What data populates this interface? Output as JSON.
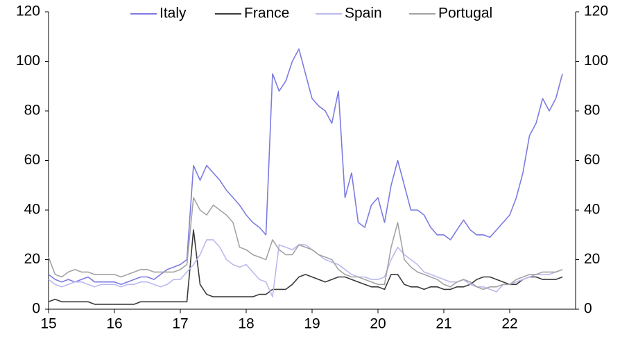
{
  "chart_data": {
    "type": "line",
    "x": [
      15,
      15.1,
      15.2,
      15.3,
      15.4,
      15.5,
      15.6,
      15.7,
      15.8,
      15.9,
      16,
      16.1,
      16.2,
      16.3,
      16.4,
      16.5,
      16.6,
      16.7,
      16.8,
      16.9,
      17,
      17.1,
      17.2,
      17.3,
      17.4,
      17.5,
      17.6,
      17.7,
      17.8,
      17.9,
      18,
      18.1,
      18.2,
      18.3,
      18.4,
      18.5,
      18.6,
      18.7,
      18.8,
      18.9,
      19,
      19.1,
      19.2,
      19.3,
      19.4,
      19.5,
      19.6,
      19.7,
      19.8,
      19.9,
      20,
      20.1,
      20.2,
      20.3,
      20.4,
      20.5,
      20.6,
      20.7,
      20.8,
      20.9,
      21,
      21.1,
      21.2,
      21.3,
      21.4,
      21.5,
      21.6,
      21.7,
      21.8,
      21.9,
      22,
      22.1,
      22.2,
      22.3,
      22.4,
      22.5,
      22.6,
      22.7,
      22.8
    ],
    "series": [
      {
        "name": "Italy",
        "color": "#7b7be3",
        "values": [
          14,
          12,
          11,
          12,
          11,
          12,
          13,
          11,
          11,
          11,
          11,
          10,
          11,
          12,
          13,
          13,
          12,
          14,
          16,
          17,
          18,
          20,
          58,
          52,
          58,
          55,
          52,
          48,
          45,
          42,
          38,
          35,
          33,
          30,
          95,
          88,
          92,
          100,
          105,
          95,
          85,
          82,
          80,
          75,
          88,
          45,
          55,
          35,
          33,
          42,
          45,
          35,
          50,
          60,
          50,
          40,
          40,
          38,
          33,
          30,
          30,
          28,
          32,
          36,
          32,
          30,
          30,
          29,
          32,
          35,
          38,
          45,
          55,
          70,
          75,
          85,
          80,
          85,
          95
        ]
      },
      {
        "name": "France",
        "color": "#3a3a3a",
        "values": [
          3,
          4,
          3,
          3,
          3,
          3,
          3,
          2,
          2,
          2,
          2,
          2,
          2,
          2,
          3,
          3,
          3,
          3,
          3,
          3,
          3,
          3,
          32,
          10,
          6,
          5,
          5,
          5,
          5,
          5,
          5,
          5,
          6,
          6,
          8,
          8,
          8,
          10,
          13,
          14,
          13,
          12,
          11,
          12,
          13,
          13,
          12,
          11,
          10,
          9,
          9,
          8,
          14,
          14,
          10,
          9,
          9,
          8,
          9,
          9,
          8,
          8,
          9,
          9,
          10,
          12,
          13,
          13,
          12,
          11,
          10,
          10,
          12,
          13,
          13,
          12,
          12,
          12,
          13
        ]
      },
      {
        "name": "Spain",
        "color": "#b9b9f0",
        "values": [
          12,
          10,
          9,
          10,
          11,
          11,
          10,
          9,
          10,
          10,
          10,
          9,
          10,
          10,
          11,
          11,
          10,
          9,
          10,
          12,
          12,
          15,
          18,
          22,
          28,
          28,
          25,
          20,
          18,
          17,
          18,
          15,
          12,
          11,
          5,
          26,
          25,
          24,
          26,
          26,
          24,
          22,
          20,
          19,
          18,
          16,
          14,
          13,
          13,
          12,
          12,
          13,
          20,
          25,
          22,
          20,
          18,
          15,
          14,
          13,
          12,
          11,
          11,
          12,
          10,
          9,
          9,
          8,
          7,
          10,
          10,
          11,
          12,
          13,
          14,
          14,
          14,
          15,
          16
        ]
      },
      {
        "name": "Portugal",
        "color": "#a3a3a3",
        "values": [
          21,
          14,
          13,
          15,
          16,
          15,
          15,
          14,
          14,
          14,
          14,
          13,
          14,
          15,
          16,
          16,
          15,
          15,
          15,
          15,
          16,
          18,
          45,
          40,
          38,
          42,
          40,
          38,
          35,
          25,
          24,
          22,
          21,
          20,
          28,
          24,
          22,
          22,
          26,
          25,
          24,
          22,
          21,
          20,
          16,
          14,
          13,
          13,
          12,
          11,
          10,
          10,
          25,
          35,
          20,
          17,
          15,
          14,
          13,
          12,
          10,
          9,
          11,
          12,
          11,
          9,
          8,
          9,
          9,
          10,
          10,
          12,
          13,
          14,
          14,
          15,
          15,
          15,
          16
        ]
      }
    ],
    "xlim": [
      15,
      23
    ],
    "xticks": [
      15,
      16,
      17,
      18,
      19,
      20,
      21,
      22
    ],
    "ylim": [
      0,
      120
    ],
    "yticks": [
      0,
      20,
      40,
      60,
      80,
      100,
      120
    ],
    "y2lim": [
      0,
      120
    ],
    "y2ticks": [
      0,
      20,
      40,
      60,
      80,
      100,
      120
    ]
  }
}
